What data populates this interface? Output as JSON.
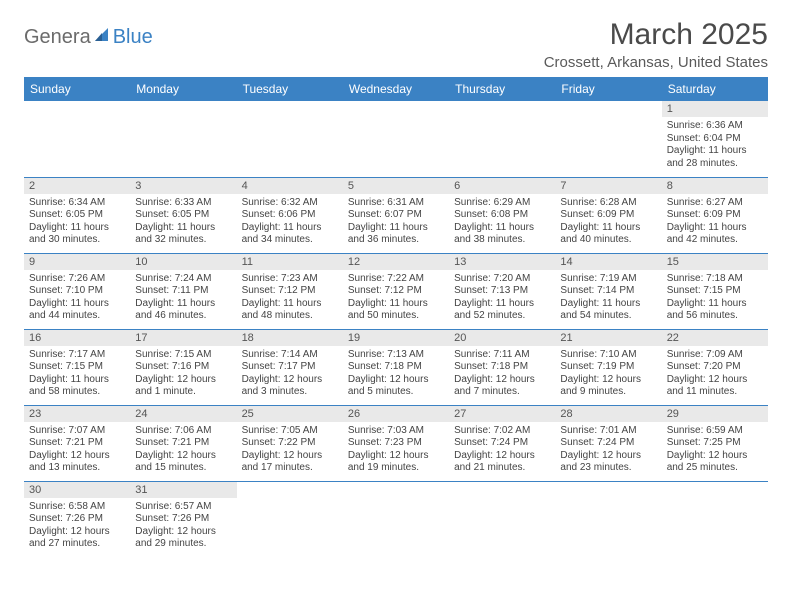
{
  "logo": {
    "part1": "Genera",
    "part2": "Blue"
  },
  "title": "March 2025",
  "location": "Crossett, Arkansas, United States",
  "colors": {
    "header_bg": "#3b82c4",
    "header_text": "#ffffff",
    "daynum_bg": "#e9e9e9",
    "border": "#3b82c4",
    "body_text": "#444444",
    "title_text": "#4a4a4a",
    "logo_gray": "#6b6b6b",
    "logo_blue": "#3b82c4"
  },
  "weekdays": [
    "Sunday",
    "Monday",
    "Tuesday",
    "Wednesday",
    "Thursday",
    "Friday",
    "Saturday"
  ],
  "weeks": [
    [
      null,
      null,
      null,
      null,
      null,
      null,
      {
        "n": "1",
        "sr": "Sunrise: 6:36 AM",
        "ss": "Sunset: 6:04 PM",
        "dl": "Daylight: 11 hours and 28 minutes."
      }
    ],
    [
      {
        "n": "2",
        "sr": "Sunrise: 6:34 AM",
        "ss": "Sunset: 6:05 PM",
        "dl": "Daylight: 11 hours and 30 minutes."
      },
      {
        "n": "3",
        "sr": "Sunrise: 6:33 AM",
        "ss": "Sunset: 6:05 PM",
        "dl": "Daylight: 11 hours and 32 minutes."
      },
      {
        "n": "4",
        "sr": "Sunrise: 6:32 AM",
        "ss": "Sunset: 6:06 PM",
        "dl": "Daylight: 11 hours and 34 minutes."
      },
      {
        "n": "5",
        "sr": "Sunrise: 6:31 AM",
        "ss": "Sunset: 6:07 PM",
        "dl": "Daylight: 11 hours and 36 minutes."
      },
      {
        "n": "6",
        "sr": "Sunrise: 6:29 AM",
        "ss": "Sunset: 6:08 PM",
        "dl": "Daylight: 11 hours and 38 minutes."
      },
      {
        "n": "7",
        "sr": "Sunrise: 6:28 AM",
        "ss": "Sunset: 6:09 PM",
        "dl": "Daylight: 11 hours and 40 minutes."
      },
      {
        "n": "8",
        "sr": "Sunrise: 6:27 AM",
        "ss": "Sunset: 6:09 PM",
        "dl": "Daylight: 11 hours and 42 minutes."
      }
    ],
    [
      {
        "n": "9",
        "sr": "Sunrise: 7:26 AM",
        "ss": "Sunset: 7:10 PM",
        "dl": "Daylight: 11 hours and 44 minutes."
      },
      {
        "n": "10",
        "sr": "Sunrise: 7:24 AM",
        "ss": "Sunset: 7:11 PM",
        "dl": "Daylight: 11 hours and 46 minutes."
      },
      {
        "n": "11",
        "sr": "Sunrise: 7:23 AM",
        "ss": "Sunset: 7:12 PM",
        "dl": "Daylight: 11 hours and 48 minutes."
      },
      {
        "n": "12",
        "sr": "Sunrise: 7:22 AM",
        "ss": "Sunset: 7:12 PM",
        "dl": "Daylight: 11 hours and 50 minutes."
      },
      {
        "n": "13",
        "sr": "Sunrise: 7:20 AM",
        "ss": "Sunset: 7:13 PM",
        "dl": "Daylight: 11 hours and 52 minutes."
      },
      {
        "n": "14",
        "sr": "Sunrise: 7:19 AM",
        "ss": "Sunset: 7:14 PM",
        "dl": "Daylight: 11 hours and 54 minutes."
      },
      {
        "n": "15",
        "sr": "Sunrise: 7:18 AM",
        "ss": "Sunset: 7:15 PM",
        "dl": "Daylight: 11 hours and 56 minutes."
      }
    ],
    [
      {
        "n": "16",
        "sr": "Sunrise: 7:17 AM",
        "ss": "Sunset: 7:15 PM",
        "dl": "Daylight: 11 hours and 58 minutes."
      },
      {
        "n": "17",
        "sr": "Sunrise: 7:15 AM",
        "ss": "Sunset: 7:16 PM",
        "dl": "Daylight: 12 hours and 1 minute."
      },
      {
        "n": "18",
        "sr": "Sunrise: 7:14 AM",
        "ss": "Sunset: 7:17 PM",
        "dl": "Daylight: 12 hours and 3 minutes."
      },
      {
        "n": "19",
        "sr": "Sunrise: 7:13 AM",
        "ss": "Sunset: 7:18 PM",
        "dl": "Daylight: 12 hours and 5 minutes."
      },
      {
        "n": "20",
        "sr": "Sunrise: 7:11 AM",
        "ss": "Sunset: 7:18 PM",
        "dl": "Daylight: 12 hours and 7 minutes."
      },
      {
        "n": "21",
        "sr": "Sunrise: 7:10 AM",
        "ss": "Sunset: 7:19 PM",
        "dl": "Daylight: 12 hours and 9 minutes."
      },
      {
        "n": "22",
        "sr": "Sunrise: 7:09 AM",
        "ss": "Sunset: 7:20 PM",
        "dl": "Daylight: 12 hours and 11 minutes."
      }
    ],
    [
      {
        "n": "23",
        "sr": "Sunrise: 7:07 AM",
        "ss": "Sunset: 7:21 PM",
        "dl": "Daylight: 12 hours and 13 minutes."
      },
      {
        "n": "24",
        "sr": "Sunrise: 7:06 AM",
        "ss": "Sunset: 7:21 PM",
        "dl": "Daylight: 12 hours and 15 minutes."
      },
      {
        "n": "25",
        "sr": "Sunrise: 7:05 AM",
        "ss": "Sunset: 7:22 PM",
        "dl": "Daylight: 12 hours and 17 minutes."
      },
      {
        "n": "26",
        "sr": "Sunrise: 7:03 AM",
        "ss": "Sunset: 7:23 PM",
        "dl": "Daylight: 12 hours and 19 minutes."
      },
      {
        "n": "27",
        "sr": "Sunrise: 7:02 AM",
        "ss": "Sunset: 7:24 PM",
        "dl": "Daylight: 12 hours and 21 minutes."
      },
      {
        "n": "28",
        "sr": "Sunrise: 7:01 AM",
        "ss": "Sunset: 7:24 PM",
        "dl": "Daylight: 12 hours and 23 minutes."
      },
      {
        "n": "29",
        "sr": "Sunrise: 6:59 AM",
        "ss": "Sunset: 7:25 PM",
        "dl": "Daylight: 12 hours and 25 minutes."
      }
    ],
    [
      {
        "n": "30",
        "sr": "Sunrise: 6:58 AM",
        "ss": "Sunset: 7:26 PM",
        "dl": "Daylight: 12 hours and 27 minutes."
      },
      {
        "n": "31",
        "sr": "Sunrise: 6:57 AM",
        "ss": "Sunset: 7:26 PM",
        "dl": "Daylight: 12 hours and 29 minutes."
      },
      null,
      null,
      null,
      null,
      null
    ]
  ]
}
